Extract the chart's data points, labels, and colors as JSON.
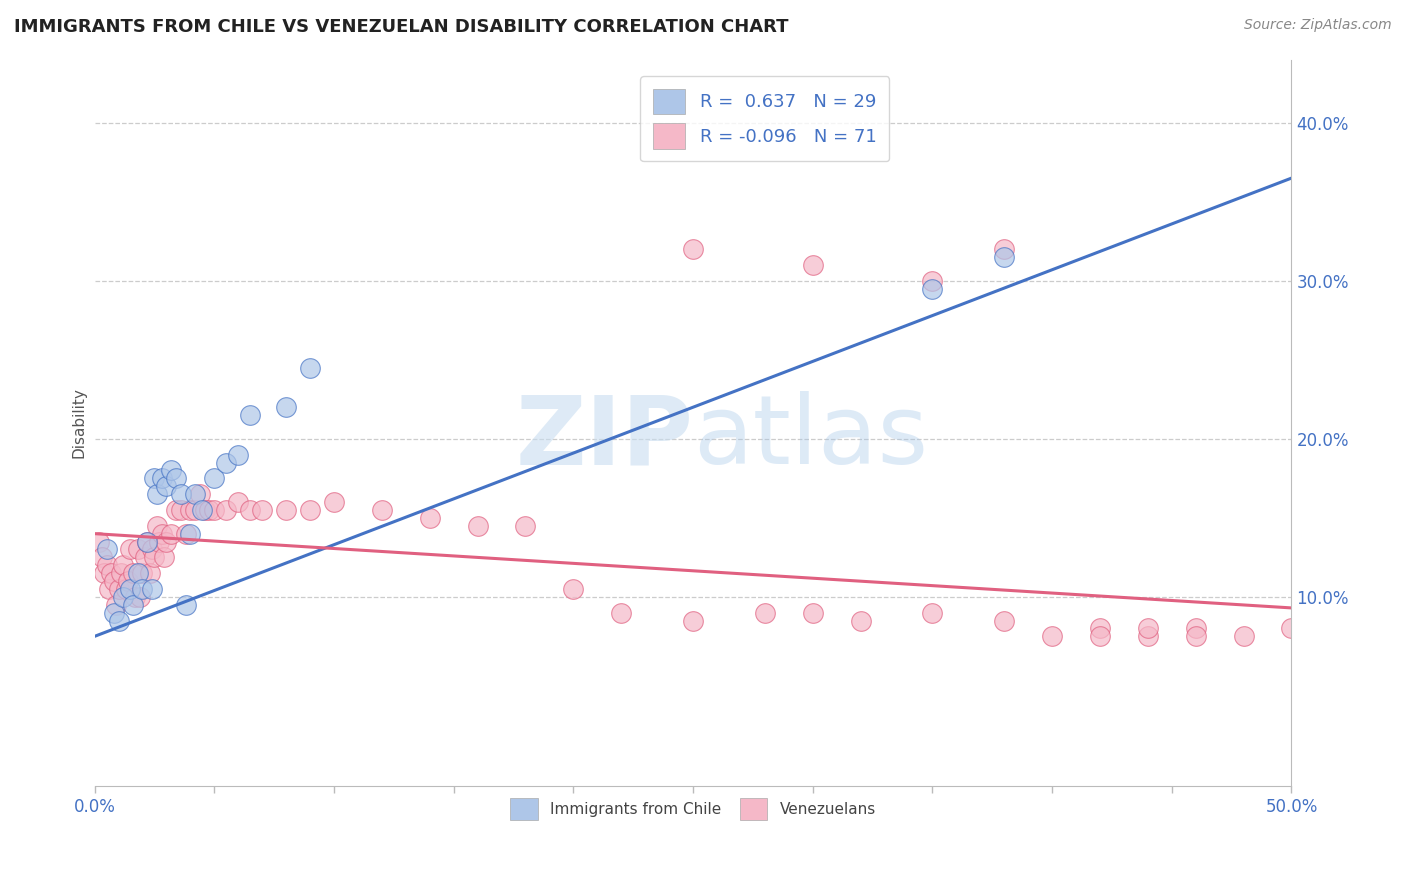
{
  "title": "IMMIGRANTS FROM CHILE VS VENEZUELAN DISABILITY CORRELATION CHART",
  "source_text": "Source: ZipAtlas.com",
  "ylabel": "Disability",
  "xlim": [
    0.0,
    0.5
  ],
  "ylim": [
    -0.02,
    0.44
  ],
  "xticks": [
    0.0,
    0.05,
    0.1,
    0.15,
    0.2,
    0.25,
    0.3,
    0.35,
    0.4,
    0.45,
    0.5
  ],
  "yticks_right": [
    0.1,
    0.2,
    0.3,
    0.4
  ],
  "ytick_labels_right": [
    "10.0%",
    "20.0%",
    "30.0%",
    "40.0%"
  ],
  "blue_color": "#aec6e8",
  "blue_edge_color": "#4472c4",
  "pink_color": "#f5b8c8",
  "pink_edge_color": "#e06080",
  "blue_line_color": "#4472c4",
  "pink_line_color": "#e06080",
  "legend_label1": "Immigrants from Chile",
  "legend_label2": "Venezuelans",
  "watermark_zip": "ZIP",
  "watermark_atlas": "atlas",
  "R_blue": 0.637,
  "N_blue": 29,
  "R_pink": -0.096,
  "N_pink": 71,
  "blue_line_x0": 0.0,
  "blue_line_y0": 0.075,
  "blue_line_x1": 0.5,
  "blue_line_y1": 0.365,
  "pink_line_x0": 0.0,
  "pink_line_y0": 0.14,
  "pink_line_x1": 0.5,
  "pink_line_y1": 0.093,
  "blue_scatter_x": [
    0.005,
    0.008,
    0.01,
    0.012,
    0.015,
    0.016,
    0.018,
    0.02,
    0.022,
    0.024,
    0.025,
    0.026,
    0.028,
    0.03,
    0.032,
    0.034,
    0.036,
    0.038,
    0.04,
    0.042,
    0.045,
    0.05,
    0.055,
    0.06,
    0.065,
    0.08,
    0.09,
    0.35,
    0.38
  ],
  "blue_scatter_y": [
    0.13,
    0.09,
    0.085,
    0.1,
    0.105,
    0.095,
    0.115,
    0.105,
    0.135,
    0.105,
    0.175,
    0.165,
    0.175,
    0.17,
    0.18,
    0.175,
    0.165,
    0.095,
    0.14,
    0.165,
    0.155,
    0.175,
    0.185,
    0.19,
    0.215,
    0.22,
    0.245,
    0.295,
    0.315
  ],
  "pink_scatter_x": [
    0.002,
    0.003,
    0.004,
    0.005,
    0.006,
    0.007,
    0.008,
    0.009,
    0.01,
    0.011,
    0.012,
    0.013,
    0.014,
    0.015,
    0.016,
    0.017,
    0.018,
    0.019,
    0.02,
    0.021,
    0.022,
    0.023,
    0.024,
    0.025,
    0.026,
    0.027,
    0.028,
    0.029,
    0.03,
    0.032,
    0.034,
    0.036,
    0.038,
    0.04,
    0.042,
    0.044,
    0.046,
    0.048,
    0.05,
    0.055,
    0.06,
    0.065,
    0.07,
    0.08,
    0.09,
    0.1,
    0.12,
    0.14,
    0.16,
    0.18,
    0.2,
    0.22,
    0.25,
    0.28,
    0.3,
    0.32,
    0.35,
    0.38,
    0.4,
    0.42,
    0.44,
    0.46,
    0.48,
    0.5,
    0.25,
    0.3,
    0.35,
    0.38,
    0.42,
    0.44,
    0.46
  ],
  "pink_scatter_y": [
    0.135,
    0.125,
    0.115,
    0.12,
    0.105,
    0.115,
    0.11,
    0.095,
    0.105,
    0.115,
    0.12,
    0.105,
    0.11,
    0.13,
    0.115,
    0.1,
    0.13,
    0.1,
    0.115,
    0.125,
    0.135,
    0.115,
    0.13,
    0.125,
    0.145,
    0.135,
    0.14,
    0.125,
    0.135,
    0.14,
    0.155,
    0.155,
    0.14,
    0.155,
    0.155,
    0.165,
    0.155,
    0.155,
    0.155,
    0.155,
    0.16,
    0.155,
    0.155,
    0.155,
    0.155,
    0.16,
    0.155,
    0.15,
    0.145,
    0.145,
    0.105,
    0.09,
    0.085,
    0.09,
    0.09,
    0.085,
    0.09,
    0.085,
    0.075,
    0.08,
    0.075,
    0.08,
    0.075,
    0.08,
    0.32,
    0.31,
    0.3,
    0.32,
    0.075,
    0.08,
    0.075
  ]
}
